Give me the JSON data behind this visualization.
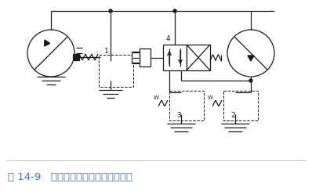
{
  "title": "图 14-9   用溢流阀的液压马达制动回路",
  "title_color": "#4472c4",
  "title_fontsize": 9.5,
  "bg_color": "#ffffff",
  "line_color": "#1a1a1a",
  "fig_width": 3.98,
  "fig_height": 2.48,
  "dpi": 100
}
